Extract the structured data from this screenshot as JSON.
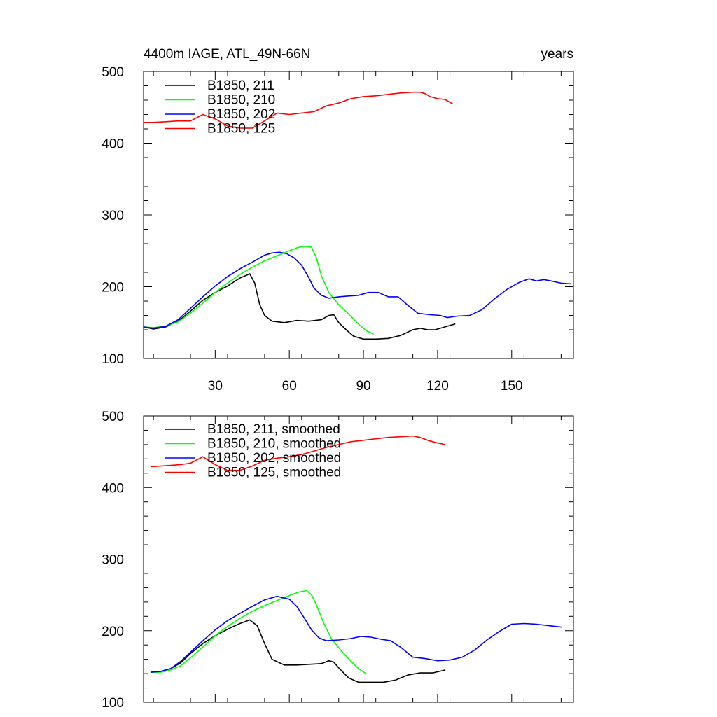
{
  "chart_data": [
    {
      "type": "line",
      "title": "4400m IAGE, ATL_49N-66N",
      "title_right": "years",
      "xlabel": "",
      "ylabel": "",
      "xlim": [
        1,
        175
      ],
      "ylim": [
        100,
        500
      ],
      "xticks": [
        30,
        60,
        90,
        120,
        150
      ],
      "yticks": [
        100,
        200,
        300,
        400,
        500
      ],
      "x_tick_labels_shown": true,
      "grid": false,
      "legend_position": "top-left",
      "series": [
        {
          "name": "B1850, 211",
          "color": "#000000",
          "x": [
            1,
            5,
            10,
            15,
            20,
            25,
            30,
            35,
            40,
            44,
            46,
            48,
            50,
            53,
            58,
            63,
            68,
            73,
            76,
            78,
            80,
            83,
            86,
            90,
            95,
            100,
            105,
            110,
            113,
            116,
            119,
            123,
            127
          ],
          "y": [
            144,
            141,
            144,
            152,
            166,
            181,
            192,
            201,
            212,
            218,
            205,
            175,
            160,
            152,
            150,
            153,
            152,
            154,
            160,
            161,
            150,
            140,
            131,
            127,
            127,
            128,
            132,
            140,
            142,
            140,
            140,
            144,
            148
          ]
        },
        {
          "name": "B1850, 210",
          "color": "#00ff00",
          "x": [
            1,
            5,
            10,
            15,
            20,
            25,
            30,
            35,
            40,
            45,
            50,
            55,
            60,
            63,
            65,
            67,
            69,
            71,
            73,
            76,
            80,
            84,
            88,
            91,
            94
          ],
          "y": [
            144,
            143,
            145,
            151,
            163,
            177,
            192,
            205,
            217,
            227,
            236,
            243,
            250,
            254,
            256,
            256,
            255,
            240,
            215,
            192,
            175,
            162,
            148,
            139,
            134
          ]
        },
        {
          "name": "B1850, 202",
          "color": "#0000ff",
          "x": [
            1,
            5,
            10,
            15,
            20,
            25,
            30,
            35,
            40,
            45,
            50,
            53,
            56,
            59,
            62,
            65,
            68,
            70,
            73,
            76,
            80,
            84,
            88,
            92,
            96,
            100,
            104,
            108,
            112,
            117,
            121,
            124,
            128,
            133,
            138,
            143,
            148,
            153,
            157,
            160,
            163,
            166,
            170,
            174
          ],
          "y": [
            144,
            142,
            145,
            154,
            170,
            186,
            201,
            214,
            225,
            234,
            244,
            247,
            248,
            246,
            240,
            230,
            212,
            198,
            188,
            184,
            186,
            187,
            188,
            192,
            192,
            186,
            186,
            174,
            163,
            161,
            160,
            157,
            159,
            160,
            168,
            183,
            196,
            206,
            211,
            208,
            210,
            208,
            205,
            204
          ]
        },
        {
          "name": "B1850, 125",
          "color": "#ff0000",
          "x": [
            1,
            5,
            10,
            15,
            20,
            25,
            30,
            35,
            40,
            45,
            50,
            55,
            60,
            65,
            70,
            75,
            80,
            85,
            90,
            95,
            100,
            105,
            110,
            113,
            115,
            117,
            120,
            123,
            126
          ],
          "y": [
            429,
            429,
            430,
            431,
            431,
            440,
            434,
            424,
            421,
            421,
            431,
            442,
            440,
            442,
            444,
            452,
            456,
            462,
            465,
            466,
            468,
            470,
            471,
            471,
            469,
            465,
            462,
            461,
            455
          ]
        }
      ]
    },
    {
      "type": "line",
      "title": "",
      "xlabel": "",
      "ylabel": "",
      "xlim": [
        1,
        175
      ],
      "ylim": [
        100,
        500
      ],
      "xticks": [
        30,
        60,
        90,
        120,
        150
      ],
      "yticks": [
        100,
        200,
        300,
        400,
        500
      ],
      "x_tick_labels_shown": false,
      "grid": false,
      "legend_position": "top-left",
      "series": [
        {
          "name": "B1850, 211, smoothed",
          "color": "#000000",
          "x": [
            4,
            8,
            12,
            16,
            20,
            25,
            30,
            35,
            40,
            44,
            47,
            50,
            53,
            58,
            63,
            68,
            73,
            76,
            78,
            80,
            84,
            88,
            93,
            98,
            103,
            108,
            113,
            118,
            123
          ],
          "y": [
            142,
            143,
            147,
            155,
            168,
            182,
            193,
            202,
            210,
            215,
            207,
            182,
            160,
            152,
            152,
            153,
            154,
            158,
            156,
            148,
            134,
            128,
            128,
            128,
            131,
            138,
            141,
            141,
            145
          ]
        },
        {
          "name": "B1850, 210, smoothed",
          "color": "#00ff00",
          "x": [
            4,
            8,
            12,
            16,
            20,
            25,
            30,
            35,
            40,
            45,
            50,
            55,
            60,
            64,
            67,
            69,
            71,
            74,
            77,
            81,
            85,
            88,
            91
          ],
          "y": [
            142,
            142,
            145,
            151,
            162,
            177,
            193,
            206,
            217,
            227,
            235,
            242,
            249,
            254,
            256,
            250,
            236,
            210,
            189,
            172,
            157,
            147,
            140
          ]
        },
        {
          "name": "B1850, 202, smoothed",
          "color": "#0000ff",
          "x": [
            4,
            8,
            12,
            16,
            20,
            25,
            30,
            35,
            40,
            45,
            50,
            55,
            60,
            63,
            66,
            69,
            72,
            75,
            80,
            85,
            89,
            93,
            97,
            101,
            105,
            110,
            115,
            120,
            125,
            130,
            135,
            140,
            145,
            150,
            155,
            160,
            165,
            170
          ],
          "y": [
            142,
            143,
            147,
            157,
            170,
            186,
            201,
            214,
            224,
            234,
            243,
            248,
            244,
            234,
            218,
            201,
            190,
            186,
            187,
            189,
            192,
            191,
            188,
            186,
            177,
            163,
            161,
            158,
            159,
            163,
            173,
            187,
            199,
            209,
            210,
            209,
            207,
            205
          ]
        },
        {
          "name": "B1850, 125, smoothed",
          "color": "#ff0000",
          "x": [
            4,
            8,
            12,
            16,
            20,
            25,
            30,
            35,
            40,
            45,
            50,
            55,
            60,
            65,
            70,
            75,
            80,
            85,
            90,
            95,
            100,
            105,
            110,
            113,
            116,
            119,
            123
          ],
          "y": [
            429,
            430,
            431,
            432,
            434,
            443,
            432,
            424,
            424,
            430,
            438,
            441,
            443,
            446,
            451,
            456,
            460,
            464,
            466,
            468,
            470,
            471,
            472,
            470,
            466,
            463,
            460
          ]
        }
      ]
    }
  ]
}
